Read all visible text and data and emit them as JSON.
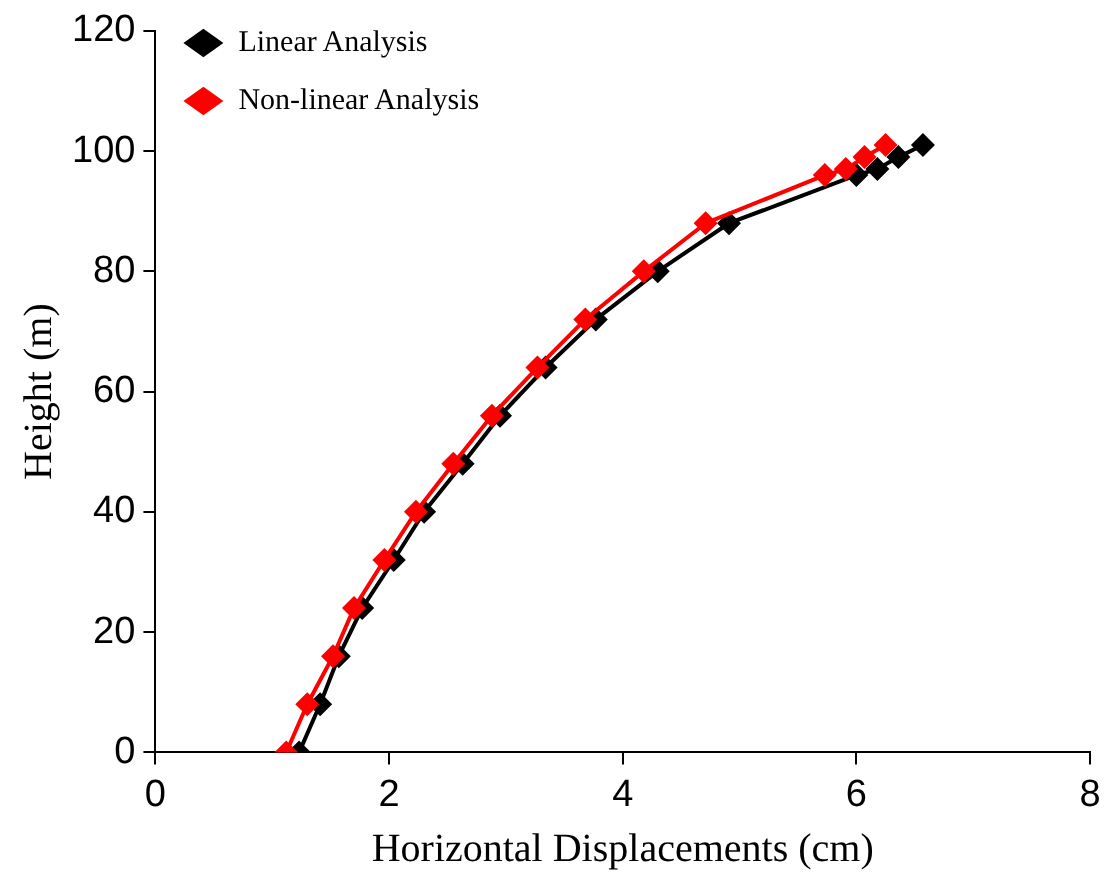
{
  "chart_data": {
    "type": "line",
    "xlabel": "Horizontal Displacements (cm)",
    "ylabel": "Height (m)",
    "xlim": [
      0,
      8
    ],
    "xticks": [
      0,
      2,
      4,
      6,
      8
    ],
    "ylim": [
      0,
      120
    ],
    "yticks": [
      0,
      20,
      40,
      60,
      80,
      100,
      120
    ],
    "grid": false,
    "legend": "top left",
    "marker": "diamond",
    "line_style": "solid",
    "series": [
      {
        "name": "Linear Analysis",
        "color": "#000000",
        "x": [
          1.23,
          1.41,
          1.57,
          1.77,
          2.04,
          2.3,
          2.63,
          2.95,
          3.34,
          3.77,
          4.3,
          4.91,
          6.0,
          6.18,
          6.36,
          6.57
        ],
        "values": [
          0,
          8,
          16,
          24,
          32,
          40,
          48,
          56,
          64,
          72,
          80,
          88,
          96,
          97,
          99,
          101
        ]
      },
      {
        "name": "Non-linear Analysis",
        "color": "#ff0000",
        "x": [
          1.12,
          1.3,
          1.52,
          1.7,
          1.96,
          2.23,
          2.55,
          2.88,
          3.27,
          3.68,
          4.18,
          4.71,
          5.73,
          5.91,
          6.07,
          6.25
        ],
        "values": [
          0,
          8,
          16,
          24,
          32,
          40,
          48,
          56,
          64,
          72,
          80,
          88,
          96,
          97,
          99,
          101
        ]
      }
    ]
  }
}
